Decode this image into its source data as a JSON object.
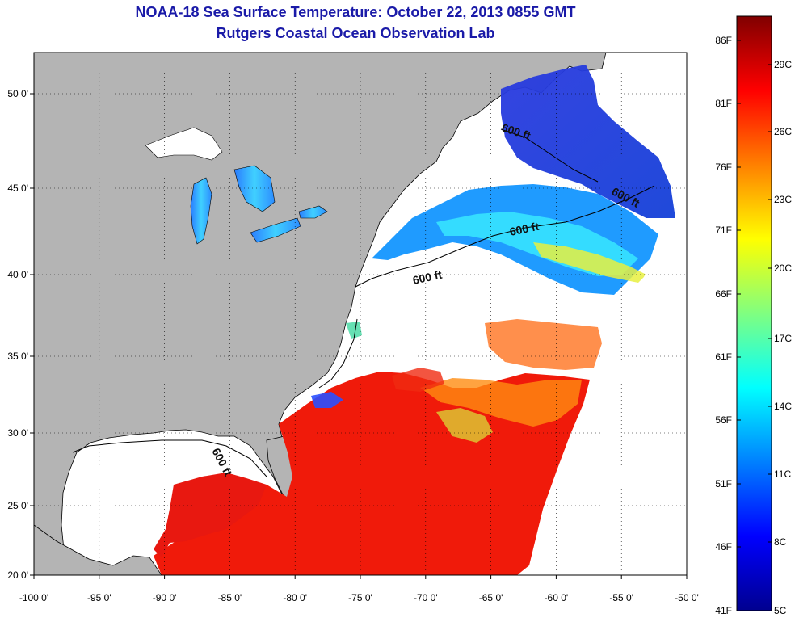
{
  "title": {
    "line1": "NOAA-18 Sea Surface Temperature:  October 22, 2013 0855 GMT",
    "line2": "Rutgers Coastal Ocean Observation Lab"
  },
  "axes": {
    "x_ticks": [
      "-100 0'",
      "-95 0'",
      "-90 0'",
      "-85 0'",
      "-80 0'",
      "-75 0'",
      "-70 0'",
      "-65 0'",
      "-60 0'",
      "-55 0'",
      "-50 0'"
    ],
    "y_ticks": [
      "50 0'",
      "45 0'",
      "40 0'",
      "35 0'",
      "30 0'",
      "25 0'",
      "20 0'"
    ]
  },
  "contour_labels": [
    "600 ft",
    "600 ft",
    "600 ft",
    "600 ft",
    "600 ft"
  ],
  "colorbar": {
    "f_labels": [
      "86F",
      "81F",
      "76F",
      "71F",
      "66F",
      "61F",
      "56F",
      "51F",
      "46F",
      "41F"
    ],
    "c_labels": [
      "29C",
      "26C",
      "23C",
      "20C",
      "17C",
      "14C",
      "11C",
      "8C",
      "5C"
    ],
    "colors": [
      "#00008f",
      "#0000ff",
      "#0080ff",
      "#00ffff",
      "#80ff80",
      "#ffff00",
      "#ff8000",
      "#ff0000",
      "#800000"
    ]
  },
  "colors": {
    "land": "#b4b4b4",
    "no_data": "#ffffff",
    "title": "#1a1aa8"
  }
}
